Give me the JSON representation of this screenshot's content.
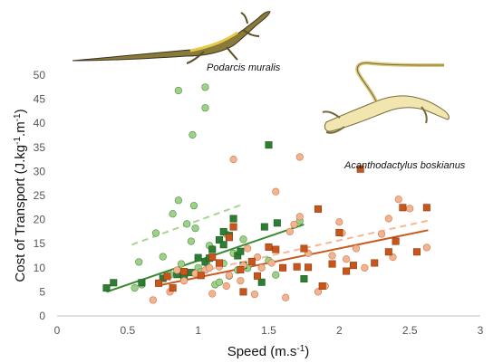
{
  "chart_data": {
    "type": "scatter",
    "xlabel": "Speed (m.s-1)",
    "ylabel": "Cost of Transport (J.kg-1.m-1)",
    "xlim": [
      0,
      3
    ],
    "ylim": [
      0,
      50
    ],
    "x_ticks": [
      "0",
      "0.5",
      "1",
      "1.5",
      "2",
      "2.5",
      "3"
    ],
    "y_ticks": [
      "0",
      "5",
      "10",
      "15",
      "20",
      "25",
      "30",
      "35",
      "40",
      "45",
      "50"
    ],
    "grid": false,
    "legend": "none",
    "annotations": [
      {
        "id": "podarcis",
        "text": "Podarcis muralis"
      },
      {
        "id": "acantho",
        "text": "Acanthodactylus boskianus"
      }
    ],
    "series": [
      {
        "marker": "circle",
        "color": "#9fd08a",
        "stroke": "#4c8f3c",
        "points": [
          [
            0.55,
            5.8
          ],
          [
            0.6,
            6.5
          ],
          [
            0.58,
            11.2
          ],
          [
            0.7,
            17.2
          ],
          [
            0.75,
            12.3
          ],
          [
            0.8,
            8.6
          ],
          [
            0.82,
            21.2
          ],
          [
            0.86,
            24.0
          ],
          [
            0.86,
            46.8
          ],
          [
            0.88,
            10.8
          ],
          [
            0.9,
            8.0
          ],
          [
            0.92,
            19.1
          ],
          [
            0.95,
            15.5
          ],
          [
            0.96,
            37.6
          ],
          [
            0.97,
            22.9
          ],
          [
            0.98,
            18.2
          ],
          [
            1.0,
            12.0
          ],
          [
            1.0,
            10.0
          ],
          [
            1.02,
            9.2
          ],
          [
            1.05,
            43.2
          ],
          [
            1.05,
            47.5
          ],
          [
            1.06,
            11.0
          ],
          [
            1.08,
            14.6
          ],
          [
            1.1,
            13.9
          ],
          [
            1.12,
            6.5
          ],
          [
            1.15,
            7.0
          ],
          [
            1.18,
            10.9
          ],
          [
            1.2,
            17.0
          ],
          [
            1.22,
            8.3
          ],
          [
            1.25,
            13.0
          ],
          [
            1.28,
            9.5
          ],
          [
            1.32,
            15.9
          ],
          [
            1.35,
            9.9
          ],
          [
            1.5,
            11.5
          ],
          [
            1.55,
            8.5
          ],
          [
            1.72,
            19.7
          ]
        ]
      },
      {
        "marker": "square",
        "color": "#2e7d32",
        "stroke": "#1e5c23",
        "points": [
          [
            0.35,
            5.8
          ],
          [
            0.4,
            6.9
          ],
          [
            0.6,
            6.9
          ],
          [
            0.75,
            7.8
          ],
          [
            0.85,
            8.6
          ],
          [
            0.9,
            8.1
          ],
          [
            0.95,
            9.0
          ],
          [
            1.0,
            12.1
          ],
          [
            1.05,
            11.2
          ],
          [
            1.08,
            12.0
          ],
          [
            1.1,
            13.8
          ],
          [
            1.15,
            15.8
          ],
          [
            1.18,
            17.5
          ],
          [
            1.18,
            14.8
          ],
          [
            1.22,
            16.7
          ],
          [
            1.25,
            20.2
          ],
          [
            1.28,
            12.5
          ],
          [
            1.3,
            13.4
          ],
          [
            1.32,
            10.5
          ],
          [
            1.45,
            7.0
          ],
          [
            1.47,
            18.5
          ],
          [
            1.5,
            35.5
          ],
          [
            1.56,
            19.3
          ],
          [
            1.75,
            7.7
          ]
        ]
      },
      {
        "marker": "circle",
        "color": "#f3b38f",
        "stroke": "#c97a52",
        "points": [
          [
            0.68,
            3.3
          ],
          [
            0.8,
            5.0
          ],
          [
            0.85,
            9.5
          ],
          [
            0.9,
            7.3
          ],
          [
            0.98,
            8.8
          ],
          [
            1.05,
            9.5
          ],
          [
            1.08,
            10.0
          ],
          [
            1.1,
            4.6
          ],
          [
            1.15,
            10.2
          ],
          [
            1.2,
            6.2
          ],
          [
            1.22,
            8.4
          ],
          [
            1.25,
            32.5
          ],
          [
            1.3,
            7.3
          ],
          [
            1.32,
            10.5
          ],
          [
            1.35,
            14.0
          ],
          [
            1.4,
            4.5
          ],
          [
            1.42,
            12.2
          ],
          [
            1.45,
            10.0
          ],
          [
            1.52,
            11.0
          ],
          [
            1.55,
            25.8
          ],
          [
            1.6,
            10.0
          ],
          [
            1.62,
            3.8
          ],
          [
            1.65,
            17.5
          ],
          [
            1.68,
            19.0
          ],
          [
            1.72,
            33.0
          ],
          [
            1.72,
            20.6
          ],
          [
            1.78,
            13.0
          ],
          [
            1.85,
            5.0
          ],
          [
            1.9,
            6.2
          ],
          [
            1.95,
            12.5
          ],
          [
            2.0,
            19.5
          ],
          [
            2.02,
            17.2
          ],
          [
            2.05,
            11.8
          ],
          [
            2.12,
            14.0
          ],
          [
            2.18,
            10.0
          ],
          [
            2.3,
            17.0
          ],
          [
            2.35,
            20.2
          ],
          [
            2.38,
            12.2
          ],
          [
            2.42,
            24.2
          ],
          [
            2.5,
            22.3
          ],
          [
            2.62,
            14.2
          ]
        ]
      },
      {
        "marker": "square",
        "color": "#c8561c",
        "stroke": "#8f3a0f",
        "points": [
          [
            0.72,
            6.8
          ],
          [
            0.78,
            8.2
          ],
          [
            0.82,
            5.8
          ],
          [
            0.9,
            9.2
          ],
          [
            1.02,
            8.4
          ],
          [
            1.1,
            12.2
          ],
          [
            1.15,
            11.0
          ],
          [
            1.22,
            16.3
          ],
          [
            1.25,
            18.5
          ],
          [
            1.3,
            9.6
          ],
          [
            1.32,
            5.0
          ],
          [
            1.38,
            11.3
          ],
          [
            1.42,
            8.3
          ],
          [
            1.5,
            14.3
          ],
          [
            1.55,
            13.8
          ],
          [
            1.6,
            10.0
          ],
          [
            1.7,
            10.2
          ],
          [
            1.75,
            14.0
          ],
          [
            1.78,
            10.1
          ],
          [
            1.85,
            22.2
          ],
          [
            1.88,
            6.2
          ],
          [
            1.95,
            10.8
          ],
          [
            2.0,
            17.3
          ],
          [
            2.05,
            9.3
          ],
          [
            2.1,
            10.5
          ],
          [
            2.15,
            30.5
          ],
          [
            2.25,
            11.0
          ],
          [
            2.35,
            13.3
          ],
          [
            2.4,
            15.5
          ],
          [
            2.45,
            22.5
          ],
          [
            2.55,
            13.3
          ],
          [
            2.62,
            22.5
          ]
        ]
      }
    ],
    "trendlines": [
      {
        "color": "#a5d68f",
        "dash": true,
        "from": [
          0.53,
          14.8
        ],
        "to": [
          1.3,
          23.0
        ]
      },
      {
        "color": "#3a8a2f",
        "dash": false,
        "from": [
          0.35,
          5.0
        ],
        "to": [
          1.75,
          19.0
        ]
      },
      {
        "color": "#f6b892",
        "dash": true,
        "from": [
          0.7,
          7.2
        ],
        "to": [
          2.63,
          19.8
        ]
      },
      {
        "color": "#c95a1e",
        "dash": false,
        "from": [
          0.7,
          6.2
        ],
        "to": [
          2.63,
          17.8
        ]
      }
    ]
  }
}
